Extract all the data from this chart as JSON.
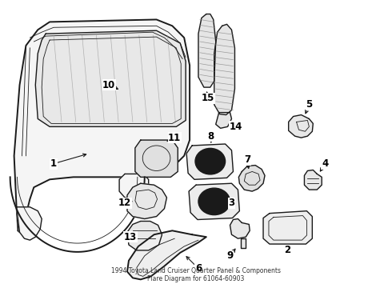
{
  "title": "1994 Toyota Land Cruiser Quarter Panel & Components",
  "subtitle": "Flare Diagram for 61064-60903",
  "bg_color": "#ffffff",
  "line_color": "#1a1a1a",
  "label_color": "#000000",
  "fig_width": 4.9,
  "fig_height": 3.6,
  "dpi": 100,
  "lw_main": 1.0,
  "lw_thick": 1.4,
  "lw_thin": 0.6,
  "label_fontsize": 8.5,
  "title_fontsize": 5.5
}
